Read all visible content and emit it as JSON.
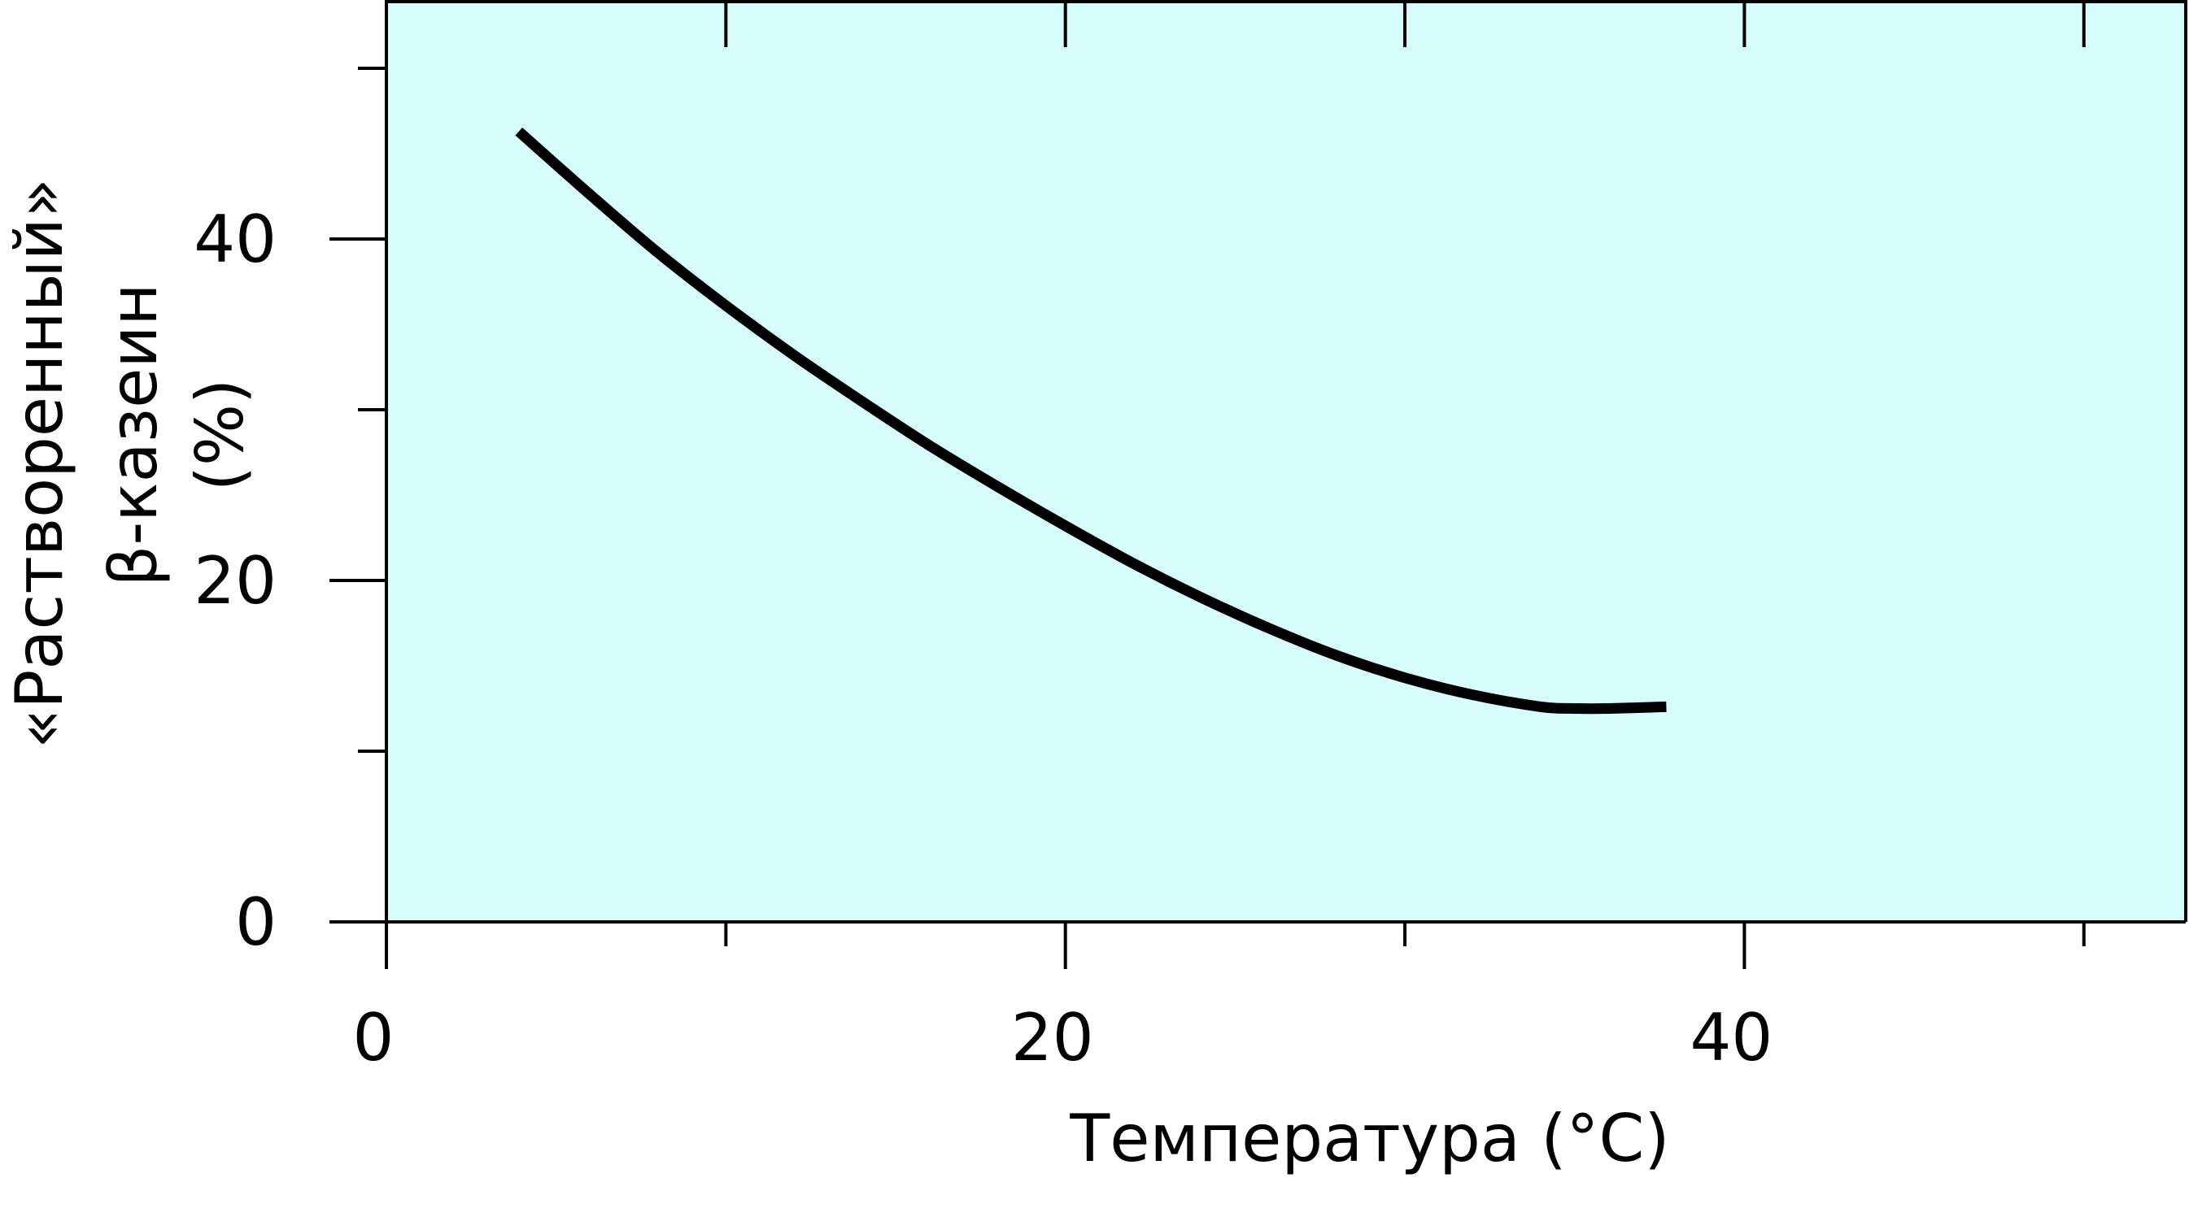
{
  "chart_data": {
    "type": "line",
    "title": "",
    "xlabel": "Температура (°C)",
    "ylabel_lines": [
      "«Растворенный»",
      "β-казеин",
      "(%)"
    ],
    "xlim": [
      0,
      53
    ],
    "ylim": [
      0,
      54
    ],
    "x_major_ticks": [
      0,
      20,
      40
    ],
    "x_minor_ticks": [
      10,
      30,
      50
    ],
    "x_tick_labels": [
      "0",
      "20",
      "40"
    ],
    "y_major_ticks": [
      0,
      20,
      40
    ],
    "y_minor_ticks": [
      10,
      30,
      50
    ],
    "y_tick_labels": [
      "0",
      "20",
      "40"
    ],
    "grid": false,
    "legend": "none",
    "colors": {
      "plot_background": "#d7fcfc",
      "line": "#000000",
      "axes": "#000000"
    },
    "series": [
      {
        "x": [
          3.9,
          6,
          8,
          10,
          12,
          14,
          16,
          18,
          20,
          22,
          24,
          26,
          28,
          30,
          32,
          34,
          35,
          36,
          37.7
        ],
        "y": [
          46.3,
          42.6,
          39.2,
          36.1,
          33.2,
          30.5,
          27.9,
          25.5,
          23.2,
          21.0,
          19.0,
          17.2,
          15.6,
          14.3,
          13.3,
          12.6,
          12.5,
          12.5,
          12.6
        ]
      }
    ]
  }
}
